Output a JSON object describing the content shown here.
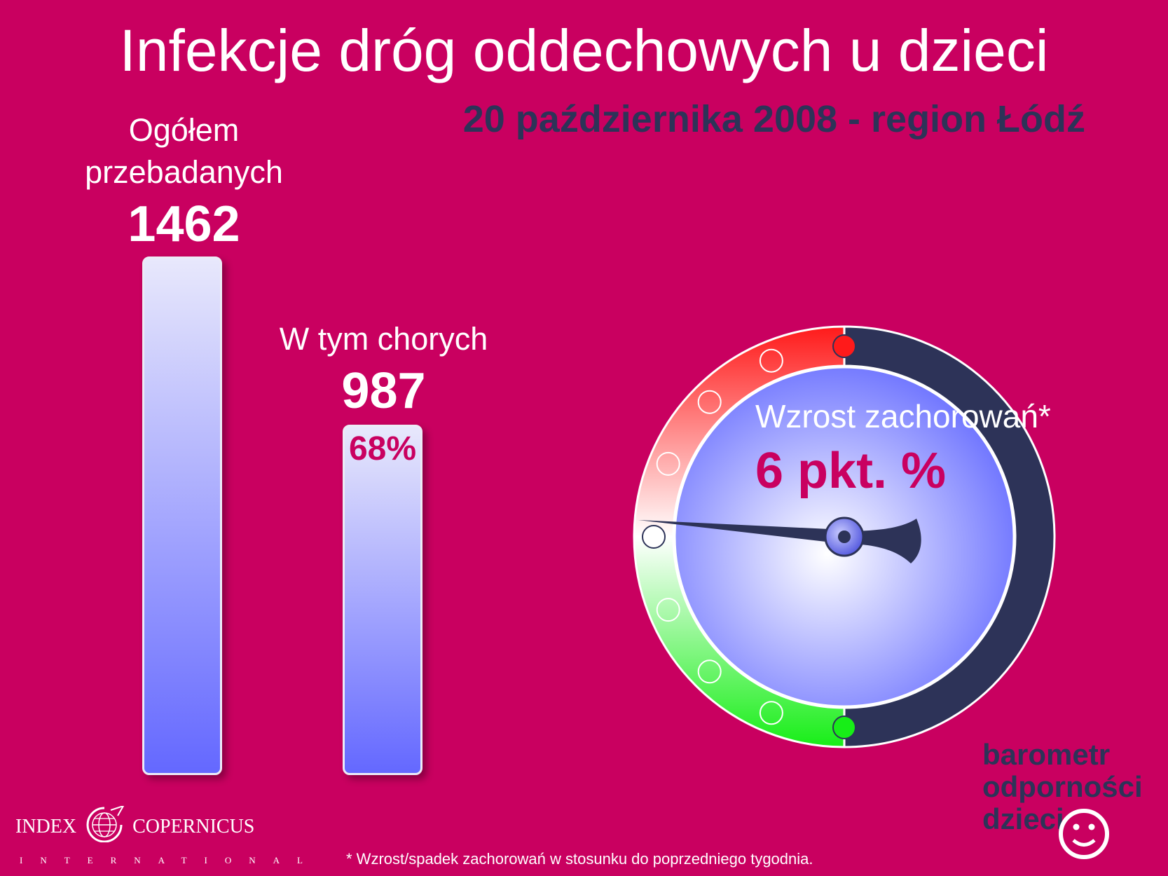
{
  "title": "Infekcje dróg oddechowych u dzieci",
  "subtitle": "20 października 2008 - region Łódź",
  "chart_data": {
    "type": "bar",
    "categories": [
      "Ogółem przebadanych",
      "W tym chorych"
    ],
    "values": [
      1462,
      987
    ],
    "ylim": [
      0,
      1462
    ],
    "bars": [
      {
        "label_lines": [
          "Ogółem",
          "przebadanych"
        ],
        "value": "1462",
        "pct": ""
      },
      {
        "label_lines": [
          "W tym chorych"
        ],
        "value": "987",
        "pct": "68%"
      }
    ]
  },
  "gauge": {
    "label": "Wzrost zachorowań*",
    "value_text": "6 pkt. %",
    "value": 6,
    "scale_ticks": 9,
    "pointer_tick_from_bottom": 4,
    "colors": {
      "top": "#ff1a1a",
      "middle": "#ffffff",
      "bottom": "#17ee17",
      "rim": "#2d3358",
      "dial": "#6a70ff"
    }
  },
  "logo_left": {
    "line1_a": "INDEX",
    "line1_b": "COPERNICUS",
    "line2": "INTERNATIONAL"
  },
  "logo_right": {
    "line1": "barometr",
    "line2": "odporności",
    "line3": "dzieci"
  },
  "footnote": "* Wzrost/spadek zachorowań w stosunku do poprzedniego tygodnia.",
  "colors": {
    "background": "#c90060",
    "accent_dark": "#2d3358",
    "bar_top": "#e8e8fc",
    "bar_bottom": "#6468ff"
  }
}
